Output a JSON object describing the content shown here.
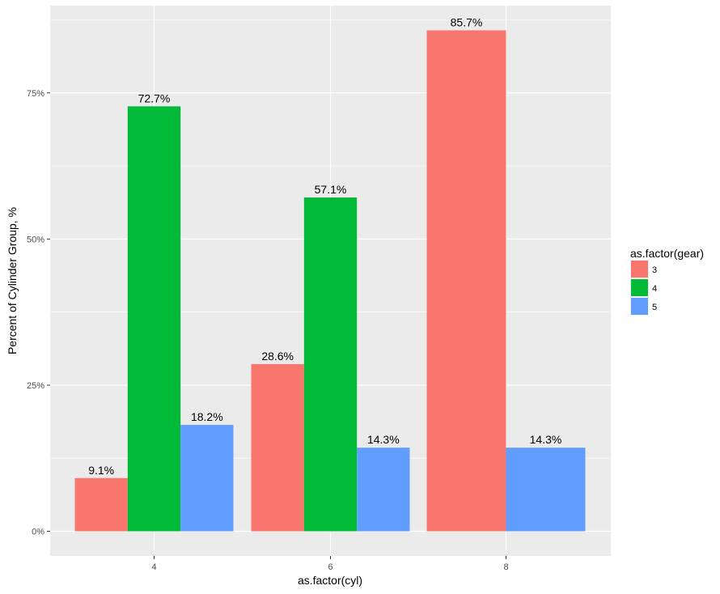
{
  "chart_data": {
    "type": "bar",
    "categories": [
      "4",
      "6",
      "8"
    ],
    "series": [
      {
        "name": "3",
        "color": "#F8766D",
        "values": [
          9.1,
          28.6,
          85.7
        ]
      },
      {
        "name": "4",
        "color": "#00BA38",
        "values": [
          72.7,
          57.1,
          null
        ]
      },
      {
        "name": "5",
        "color": "#619CFF",
        "values": [
          18.2,
          14.3,
          14.3
        ]
      }
    ],
    "data_labels": [
      [
        "9.1%",
        "28.6%",
        "85.7%"
      ],
      [
        "72.7%",
        "57.1%",
        null
      ],
      [
        "18.2%",
        "14.3%",
        "14.3%"
      ]
    ],
    "y_ticks": [
      0,
      25,
      50,
      75
    ],
    "y_tick_labels": [
      "0%",
      "25%",
      "50%",
      "75%"
    ],
    "ylim": [
      -4.3,
      89.9
    ],
    "xlabel": "as.factor(cyl)",
    "ylabel": "Percent of Cylinder Group, %",
    "legend_title": "as.factor(gear)",
    "legend_position": "right",
    "grid": true,
    "panel_background": "#EBEBEB",
    "grid_color": "#FFFFFF"
  }
}
